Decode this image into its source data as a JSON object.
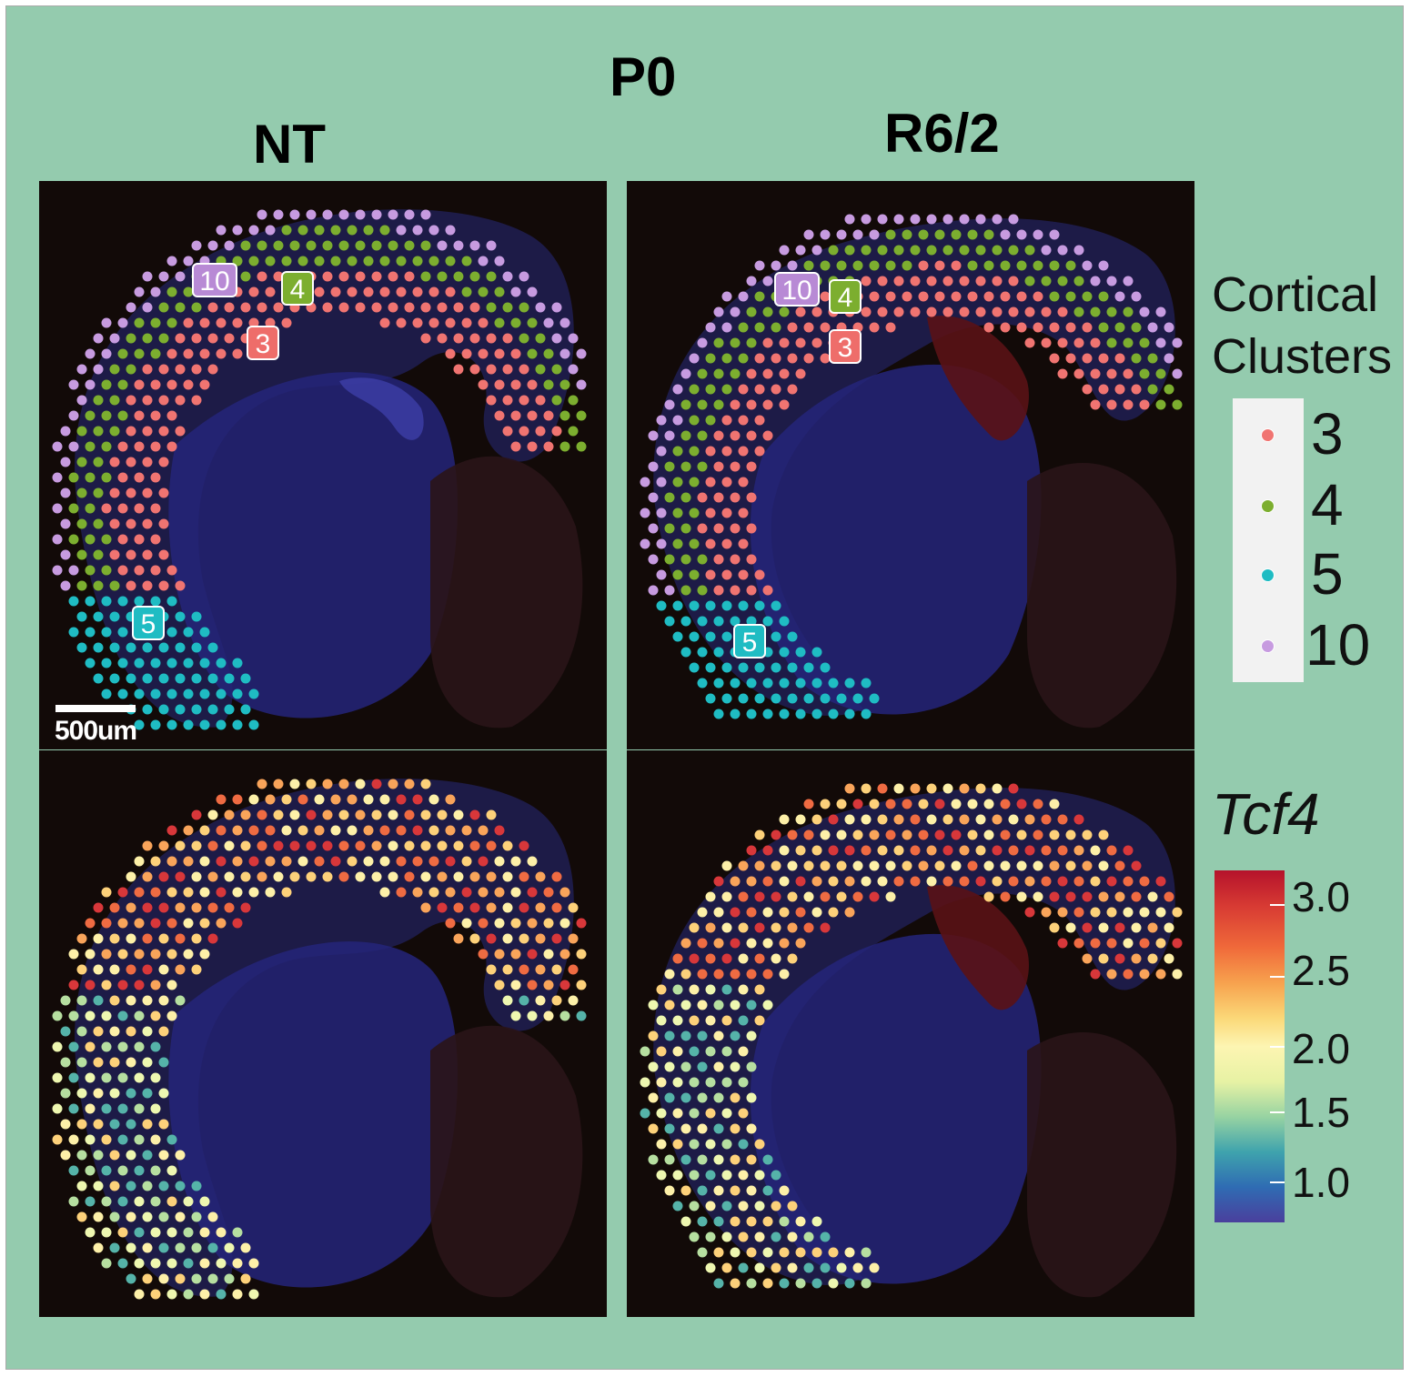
{
  "figure": {
    "title": "P0",
    "columns": [
      "NT",
      "R6/2"
    ],
    "scale_bar": "500um"
  },
  "cluster_legend": {
    "title_line1": "Cortical",
    "title_line2": "Clusters",
    "items": [
      {
        "label": "3",
        "color": "#f07471"
      },
      {
        "label": "4",
        "color": "#7cae2f"
      },
      {
        "label": "5",
        "color": "#1fbcc3"
      },
      {
        "label": "10",
        "color": "#c79be0"
      }
    ]
  },
  "cluster_tags": {
    "nt": [
      "10",
      "4",
      "3",
      "5"
    ],
    "r62": [
      "10",
      "4",
      "3",
      "5"
    ]
  },
  "expression_legend": {
    "gene": "Tcf4",
    "ticks": [
      "3.0",
      "2.5",
      "2.0",
      "1.5",
      "1.0"
    ],
    "range": [
      0.8,
      3.2
    ]
  }
}
